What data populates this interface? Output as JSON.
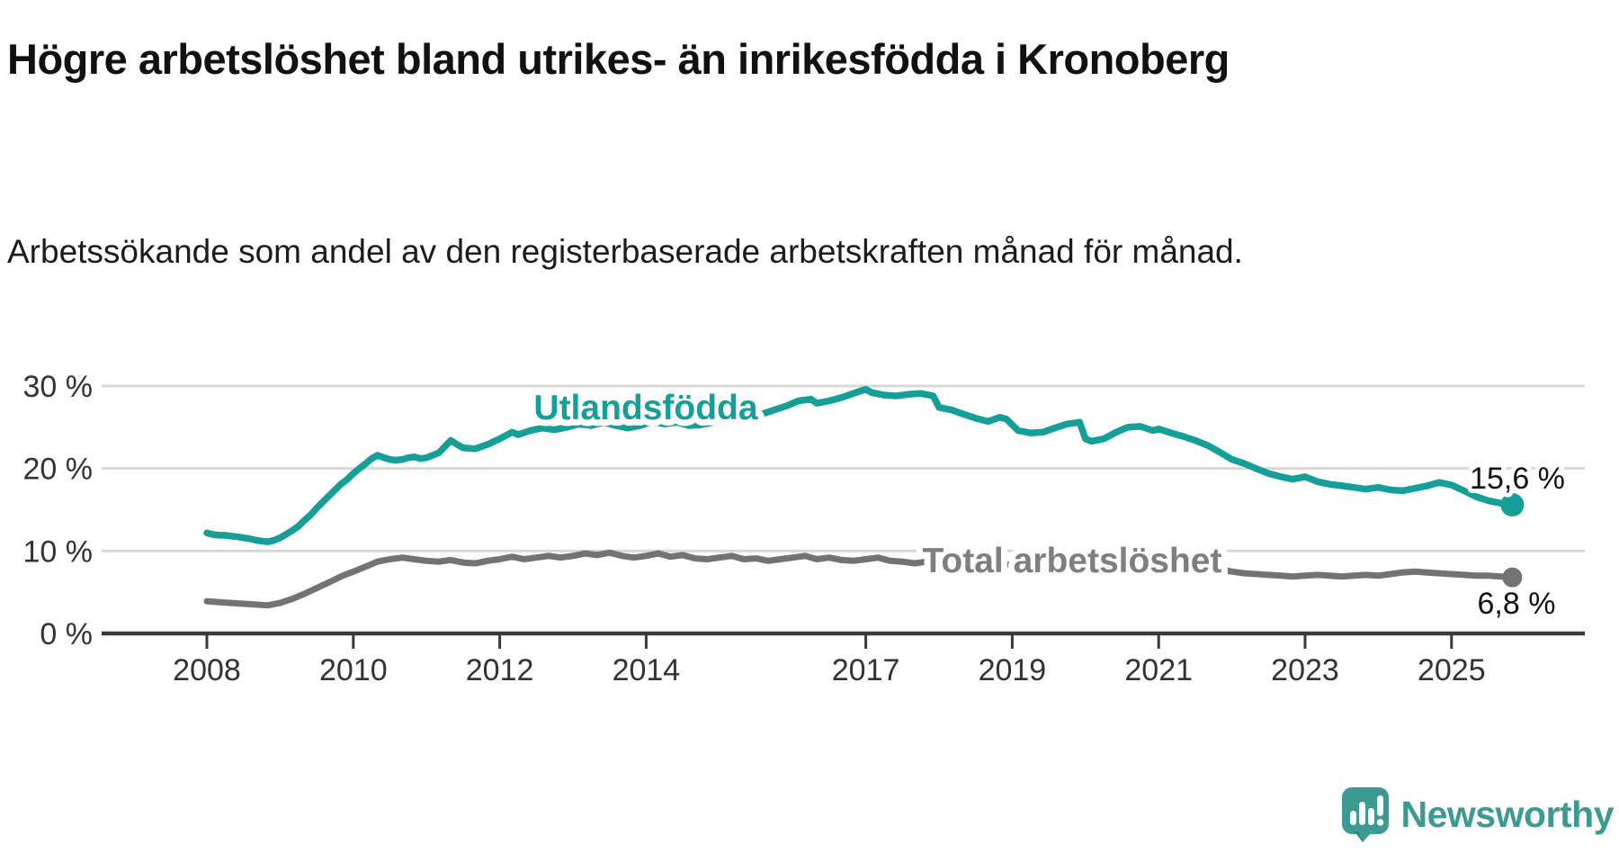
{
  "header": {
    "title": "Högre arbetslöshet bland utrikes- än inrikesfödda i Kronoberg",
    "subtitle": "Arbetssökande som andel av den registerbaserade arbetskraften månad för månad."
  },
  "chart_data": {
    "type": "line",
    "title": "Högre arbetslöshet bland utrikes- än inrikesfödda i Kronoberg",
    "xlabel": "",
    "ylabel": "Arbetssökande som andel av den registerbaserade arbetskraften",
    "grid": "horizontal",
    "legend_position": "inline-labels",
    "x_axis": {
      "tick_years": [
        2008,
        2010,
        2012,
        2014,
        2017,
        2019,
        2021,
        2023,
        2025
      ],
      "tick_labels": [
        "2008",
        "2010",
        "2012",
        "2014",
        "2017",
        "2019",
        "2021",
        "2023",
        "2025"
      ],
      "range": [
        2007.55,
        2026.8
      ]
    },
    "y_axis": {
      "ticks": [
        0,
        10,
        20,
        30
      ],
      "tick_labels": [
        "0 %",
        "10 %",
        "20 %",
        "30 %"
      ],
      "range": [
        0,
        33
      ],
      "unit": "%"
    },
    "colors": {
      "grid": "#d8d8d8",
      "axis": "#3a3a3a",
      "tick_text": "#333333",
      "end_label_text": "#111111"
    },
    "series": [
      {
        "name": "Utlandsfödda",
        "color": "#14a098",
        "label_color": "#14a098",
        "end_label": "15,6 %",
        "end_value": 15.6,
        "points": [
          [
            2008.0,
            12.2
          ],
          [
            2008.08,
            12.0
          ],
          [
            2008.17,
            11.9
          ],
          [
            2008.25,
            11.9
          ],
          [
            2008.33,
            11.8
          ],
          [
            2008.42,
            11.7
          ],
          [
            2008.5,
            11.6
          ],
          [
            2008.58,
            11.5
          ],
          [
            2008.67,
            11.3
          ],
          [
            2008.75,
            11.2
          ],
          [
            2008.83,
            11.1
          ],
          [
            2008.92,
            11.3
          ],
          [
            2009.0,
            11.6
          ],
          [
            2009.08,
            12.0
          ],
          [
            2009.17,
            12.5
          ],
          [
            2009.25,
            13.0
          ],
          [
            2009.33,
            13.7
          ],
          [
            2009.42,
            14.4
          ],
          [
            2009.5,
            15.2
          ],
          [
            2009.58,
            15.9
          ],
          [
            2009.67,
            16.7
          ],
          [
            2009.75,
            17.4
          ],
          [
            2009.83,
            18.1
          ],
          [
            2009.92,
            18.7
          ],
          [
            2010.0,
            19.4
          ],
          [
            2010.08,
            20.0
          ],
          [
            2010.17,
            20.6
          ],
          [
            2010.25,
            21.2
          ],
          [
            2010.33,
            21.6
          ],
          [
            2010.42,
            21.3
          ],
          [
            2010.5,
            21.1
          ],
          [
            2010.58,
            21.0
          ],
          [
            2010.67,
            21.1
          ],
          [
            2010.75,
            21.3
          ],
          [
            2010.83,
            21.4
          ],
          [
            2010.92,
            21.2
          ],
          [
            2011.0,
            21.3
          ],
          [
            2011.17,
            21.9
          ],
          [
            2011.33,
            23.4
          ],
          [
            2011.42,
            22.9
          ],
          [
            2011.5,
            22.5
          ],
          [
            2011.67,
            22.4
          ],
          [
            2011.83,
            22.9
          ],
          [
            2012.0,
            23.6
          ],
          [
            2012.17,
            24.4
          ],
          [
            2012.25,
            24.1
          ],
          [
            2012.42,
            24.6
          ],
          [
            2012.58,
            24.9
          ],
          [
            2012.75,
            24.7
          ],
          [
            2012.92,
            25.0
          ],
          [
            2013.08,
            25.4
          ],
          [
            2013.25,
            25.2
          ],
          [
            2013.42,
            25.6
          ],
          [
            2013.58,
            25.2
          ],
          [
            2013.75,
            24.9
          ],
          [
            2013.92,
            25.2
          ],
          [
            2014.08,
            25.7
          ],
          [
            2014.25,
            25.4
          ],
          [
            2014.42,
            25.6
          ],
          [
            2014.58,
            25.2
          ],
          [
            2014.75,
            25.3
          ],
          [
            2014.92,
            25.6
          ],
          [
            2015.08,
            26.1
          ],
          [
            2015.25,
            25.9
          ],
          [
            2015.42,
            26.3
          ],
          [
            2015.58,
            26.6
          ],
          [
            2015.75,
            27.1
          ],
          [
            2015.92,
            27.6
          ],
          [
            2016.08,
            28.2
          ],
          [
            2016.25,
            28.4
          ],
          [
            2016.33,
            27.9
          ],
          [
            2016.5,
            28.2
          ],
          [
            2016.67,
            28.6
          ],
          [
            2016.83,
            29.1
          ],
          [
            2017.0,
            29.6
          ],
          [
            2017.08,
            29.2
          ],
          [
            2017.25,
            28.9
          ],
          [
            2017.42,
            28.8
          ],
          [
            2017.58,
            29.0
          ],
          [
            2017.75,
            29.1
          ],
          [
            2017.92,
            28.8
          ],
          [
            2018.0,
            27.4
          ],
          [
            2018.17,
            27.1
          ],
          [
            2018.33,
            26.6
          ],
          [
            2018.5,
            26.1
          ],
          [
            2018.67,
            25.7
          ],
          [
            2018.83,
            26.2
          ],
          [
            2018.92,
            26.0
          ],
          [
            2019.08,
            24.6
          ],
          [
            2019.25,
            24.3
          ],
          [
            2019.42,
            24.4
          ],
          [
            2019.58,
            24.9
          ],
          [
            2019.75,
            25.4
          ],
          [
            2019.92,
            25.6
          ],
          [
            2020.0,
            23.6
          ],
          [
            2020.08,
            23.3
          ],
          [
            2020.25,
            23.6
          ],
          [
            2020.42,
            24.4
          ],
          [
            2020.58,
            25.0
          ],
          [
            2020.75,
            25.1
          ],
          [
            2020.92,
            24.6
          ],
          [
            2021.0,
            24.8
          ],
          [
            2021.17,
            24.3
          ],
          [
            2021.33,
            23.9
          ],
          [
            2021.5,
            23.4
          ],
          [
            2021.67,
            22.8
          ],
          [
            2021.83,
            22.0
          ],
          [
            2022.0,
            21.1
          ],
          [
            2022.17,
            20.6
          ],
          [
            2022.33,
            20.0
          ],
          [
            2022.5,
            19.4
          ],
          [
            2022.67,
            19.0
          ],
          [
            2022.83,
            18.7
          ],
          [
            2023.0,
            19.0
          ],
          [
            2023.17,
            18.4
          ],
          [
            2023.33,
            18.1
          ],
          [
            2023.5,
            17.9
          ],
          [
            2023.67,
            17.7
          ],
          [
            2023.83,
            17.5
          ],
          [
            2024.0,
            17.7
          ],
          [
            2024.17,
            17.4
          ],
          [
            2024.33,
            17.3
          ],
          [
            2024.5,
            17.6
          ],
          [
            2024.67,
            17.9
          ],
          [
            2024.83,
            18.3
          ],
          [
            2025.0,
            18.0
          ],
          [
            2025.17,
            17.3
          ],
          [
            2025.33,
            16.6
          ],
          [
            2025.5,
            16.1
          ],
          [
            2025.67,
            15.8
          ],
          [
            2025.83,
            15.6
          ]
        ]
      },
      {
        "name": "Total arbetslöshet",
        "color": "#737373",
        "label_color": "#7f7f7f",
        "end_label": "6,8 %",
        "end_value": 6.8,
        "points": [
          [
            2008.0,
            3.9
          ],
          [
            2008.17,
            3.8
          ],
          [
            2008.33,
            3.7
          ],
          [
            2008.5,
            3.6
          ],
          [
            2008.67,
            3.5
          ],
          [
            2008.83,
            3.4
          ],
          [
            2009.0,
            3.7
          ],
          [
            2009.17,
            4.2
          ],
          [
            2009.33,
            4.8
          ],
          [
            2009.5,
            5.5
          ],
          [
            2009.67,
            6.2
          ],
          [
            2009.83,
            6.9
          ],
          [
            2010.0,
            7.5
          ],
          [
            2010.17,
            8.1
          ],
          [
            2010.33,
            8.7
          ],
          [
            2010.5,
            9.0
          ],
          [
            2010.67,
            9.2
          ],
          [
            2010.83,
            9.0
          ],
          [
            2011.0,
            8.8
          ],
          [
            2011.17,
            8.7
          ],
          [
            2011.33,
            8.9
          ],
          [
            2011.5,
            8.6
          ],
          [
            2011.67,
            8.5
          ],
          [
            2011.83,
            8.8
          ],
          [
            2012.0,
            9.0
          ],
          [
            2012.17,
            9.3
          ],
          [
            2012.33,
            9.0
          ],
          [
            2012.5,
            9.2
          ],
          [
            2012.67,
            9.4
          ],
          [
            2012.83,
            9.2
          ],
          [
            2013.0,
            9.4
          ],
          [
            2013.17,
            9.7
          ],
          [
            2013.33,
            9.5
          ],
          [
            2013.5,
            9.8
          ],
          [
            2013.67,
            9.4
          ],
          [
            2013.83,
            9.2
          ],
          [
            2014.0,
            9.4
          ],
          [
            2014.17,
            9.7
          ],
          [
            2014.33,
            9.3
          ],
          [
            2014.5,
            9.5
          ],
          [
            2014.67,
            9.1
          ],
          [
            2014.83,
            9.0
          ],
          [
            2015.0,
            9.2
          ],
          [
            2015.17,
            9.4
          ],
          [
            2015.33,
            9.0
          ],
          [
            2015.5,
            9.1
          ],
          [
            2015.67,
            8.8
          ],
          [
            2015.83,
            9.0
          ],
          [
            2016.0,
            9.2
          ],
          [
            2016.17,
            9.4
          ],
          [
            2016.33,
            9.0
          ],
          [
            2016.5,
            9.2
          ],
          [
            2016.67,
            8.9
          ],
          [
            2016.83,
            8.8
          ],
          [
            2017.0,
            9.0
          ],
          [
            2017.17,
            9.2
          ],
          [
            2017.33,
            8.8
          ],
          [
            2017.5,
            8.7
          ],
          [
            2017.67,
            8.5
          ],
          [
            2017.83,
            8.7
          ],
          [
            2018.0,
            8.6
          ],
          [
            2018.17,
            8.8
          ],
          [
            2018.33,
            8.5
          ],
          [
            2018.5,
            8.3
          ],
          [
            2018.67,
            8.2
          ],
          [
            2018.83,
            8.4
          ],
          [
            2019.0,
            8.3
          ],
          [
            2019.17,
            8.5
          ],
          [
            2019.33,
            8.2
          ],
          [
            2019.5,
            8.1
          ],
          [
            2019.67,
            8.3
          ],
          [
            2019.83,
            8.5
          ],
          [
            2020.0,
            8.2
          ],
          [
            2020.17,
            8.5
          ],
          [
            2020.33,
            9.1
          ],
          [
            2020.5,
            9.5
          ],
          [
            2020.67,
            9.6
          ],
          [
            2020.83,
            9.4
          ],
          [
            2021.0,
            9.2
          ],
          [
            2021.17,
            9.0
          ],
          [
            2021.33,
            8.7
          ],
          [
            2021.5,
            8.4
          ],
          [
            2021.67,
            8.1
          ],
          [
            2021.83,
            7.8
          ],
          [
            2022.0,
            7.5
          ],
          [
            2022.17,
            7.3
          ],
          [
            2022.33,
            7.2
          ],
          [
            2022.5,
            7.1
          ],
          [
            2022.67,
            7.0
          ],
          [
            2022.83,
            6.9
          ],
          [
            2023.0,
            7.0
          ],
          [
            2023.17,
            7.1
          ],
          [
            2023.33,
            7.0
          ],
          [
            2023.5,
            6.9
          ],
          [
            2023.67,
            7.0
          ],
          [
            2023.83,
            7.1
          ],
          [
            2024.0,
            7.0
          ],
          [
            2024.17,
            7.2
          ],
          [
            2024.33,
            7.4
          ],
          [
            2024.5,
            7.5
          ],
          [
            2024.67,
            7.4
          ],
          [
            2024.83,
            7.3
          ],
          [
            2025.0,
            7.2
          ],
          [
            2025.17,
            7.1
          ],
          [
            2025.33,
            7.0
          ],
          [
            2025.5,
            7.0
          ],
          [
            2025.67,
            6.9
          ],
          [
            2025.83,
            6.8
          ]
        ]
      }
    ]
  },
  "footer": {
    "brand": "Newsworthy",
    "brand_color": "#3d9a93"
  }
}
